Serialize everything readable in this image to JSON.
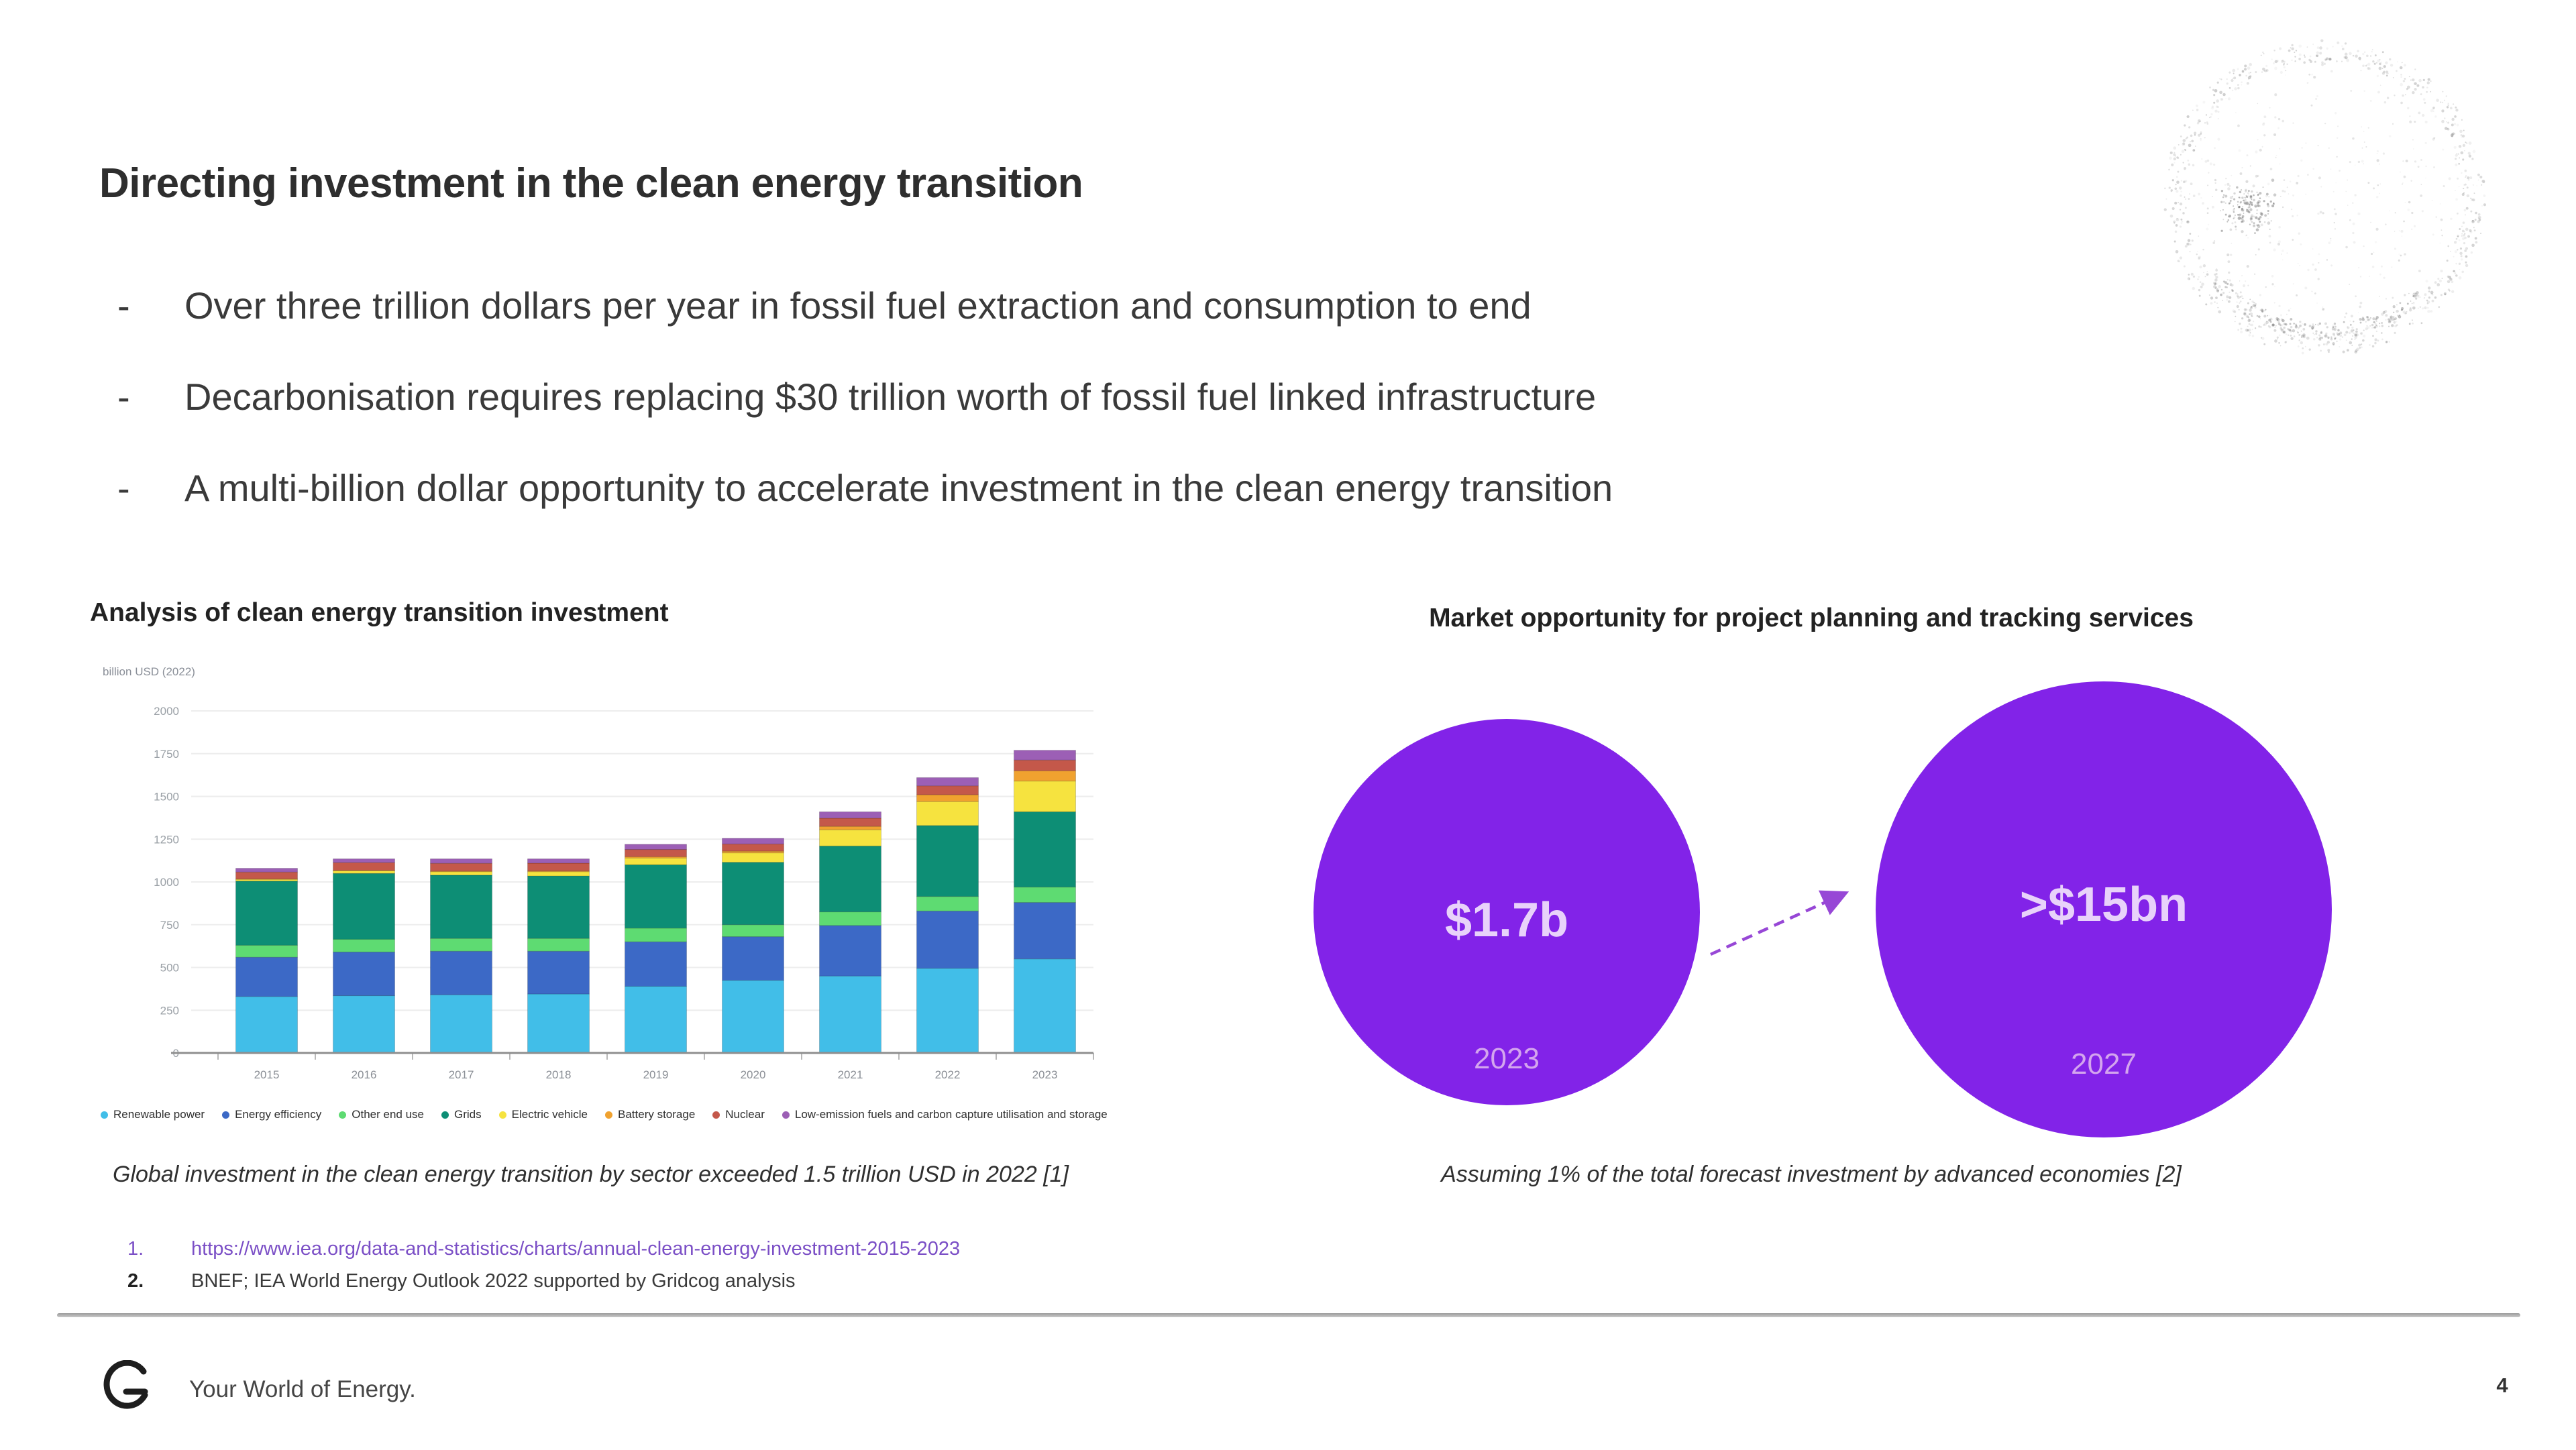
{
  "slide": {
    "title": "Directing investment in the clean energy transition",
    "bullets": [
      "Over three trillion dollars per year in fossil fuel extraction and consumption to end",
      "Decarbonisation requires replacing $30 trillion worth of fossil fuel linked infrastructure",
      "A multi-billion dollar opportunity to accelerate investment in the clean energy transition"
    ],
    "footer_tagline": "Your World of Energy.",
    "page_number": "4"
  },
  "left_panel": {
    "title": "Analysis of clean energy transition investment",
    "caption": "Global investment in the clean energy transition by sector exceeded 1.5 trillion USD in 2022 [1]"
  },
  "right_panel": {
    "title": "Market opportunity for project planning and tracking services",
    "caption": "Assuming 1% of the total forecast investment by advanced economies [2]",
    "accent_color": "#8223e8",
    "arrow_color": "#9747d6",
    "bubbles": [
      {
        "label": "$1.7b",
        "year": "2023"
      },
      {
        "label": ">$15bn",
        "year": "2027"
      }
    ]
  },
  "footnotes": [
    {
      "marker": "1.",
      "text": "https://www.iea.org/data-and-statistics/charts/annual-clean-energy-investment-2015-2023",
      "link": true
    },
    {
      "marker": "2.",
      "text": "BNEF; IEA World Energy Outlook 2022 supported by Gridcog analysis",
      "link": false
    }
  ],
  "chart_data": [
    {
      "type": "bar",
      "stacked": true,
      "title": "Analysis of clean energy transition investment",
      "xlabel": "",
      "ylabel": "billion USD (2022)",
      "ylim": [
        0,
        2000
      ],
      "ytick_step": 250,
      "grid": true,
      "legend_position": "bottom",
      "categories": [
        "2015",
        "2016",
        "2017",
        "2018",
        "2019",
        "2020",
        "2021",
        "2022",
        "2023"
      ],
      "series": [
        {
          "name": "Renewable power",
          "color": "#41bee8",
          "values": [
            330,
            335,
            340,
            345,
            390,
            425,
            450,
            495,
            550
          ]
        },
        {
          "name": "Energy efficiency",
          "color": "#3c69c6",
          "values": [
            230,
            255,
            255,
            250,
            260,
            255,
            295,
            335,
            330
          ]
        },
        {
          "name": "Other end use",
          "color": "#5edb72",
          "values": [
            70,
            75,
            75,
            75,
            80,
            70,
            80,
            85,
            90
          ]
        },
        {
          "name": "Grids",
          "color": "#0d8e75",
          "values": [
            375,
            385,
            370,
            365,
            370,
            365,
            385,
            415,
            440
          ]
        },
        {
          "name": "Electric vehicle",
          "color": "#f6e33f",
          "values": [
            10,
            15,
            20,
            25,
            40,
            55,
            95,
            140,
            180
          ]
        },
        {
          "name": "Battery storage",
          "color": "#f0a22f",
          "values": [
            3,
            3,
            4,
            5,
            8,
            10,
            20,
            40,
            60
          ]
        },
        {
          "name": "Nuclear",
          "color": "#c4584a",
          "values": [
            40,
            45,
            45,
            45,
            42,
            42,
            48,
            52,
            63
          ]
        },
        {
          "name": "Low-emission fuels and carbon capture utilisation and storage",
          "color": "#9c5fb5",
          "values": [
            22,
            22,
            26,
            25,
            30,
            33,
            37,
            48,
            57
          ]
        }
      ]
    },
    {
      "type": "bubble",
      "title": "Market opportunity for project planning and tracking services",
      "points": [
        {
          "label": "$1.7b",
          "year": "2023",
          "value_bn": 1.7
        },
        {
          "label": ">$15bn",
          "year": "2027",
          "value_bn": 15
        }
      ],
      "color": "#8223e8"
    }
  ]
}
